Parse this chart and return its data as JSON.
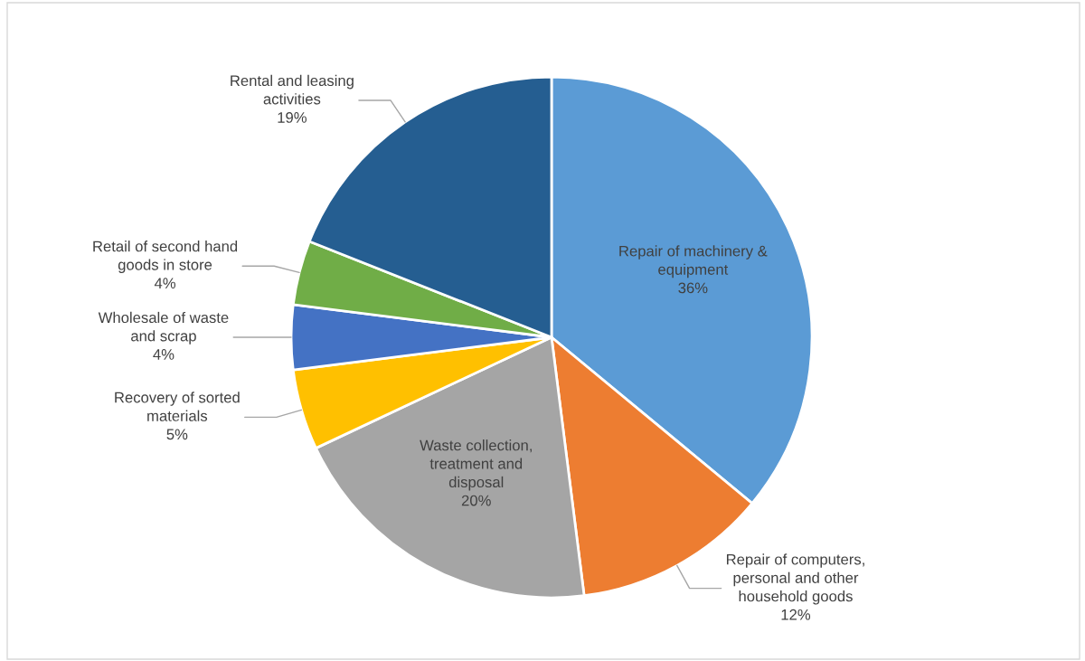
{
  "chart_data": {
    "type": "pie",
    "categories": [
      "Repair of machinery &\nequipment",
      "Repair of computers,\npersonal and other\nhousehold goods",
      "Waste collection,\ntreatment and\ndisposal",
      "Recovery of sorted\nmaterials",
      "Wholesale of waste\nand scrap",
      "Retail of second hand\ngoods in store",
      "Rental and leasing\nactivities"
    ],
    "values": [
      36,
      12,
      20,
      5,
      4,
      4,
      19
    ],
    "value_labels": [
      "36%",
      "12%",
      "20%",
      "5%",
      "4%",
      "4%",
      "19%"
    ],
    "colors": [
      "#5b9bd5",
      "#ed7d31",
      "#a5a5a5",
      "#ffc000",
      "#4472c4",
      "#70ad47",
      "#255e91"
    ]
  }
}
